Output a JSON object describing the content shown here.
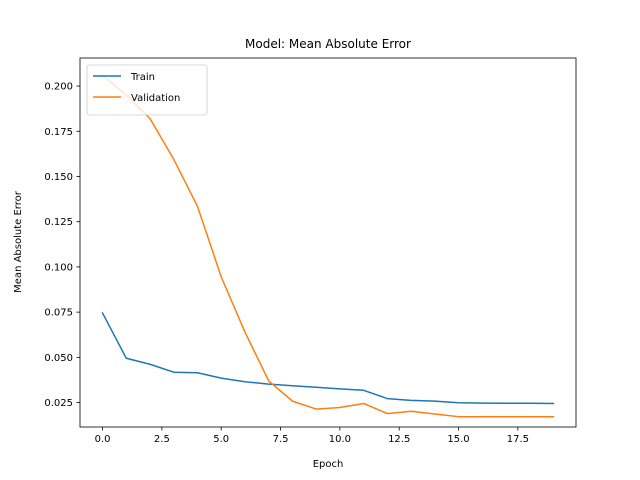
{
  "chart_data": {
    "type": "line",
    "title": "Model: Mean Absolute Error",
    "xlabel": "Epoch",
    "ylabel": "Mean Absolute Error",
    "xlim": [
      -0.95,
      19.95
    ],
    "ylim": [
      0.0115,
      0.2155
    ],
    "xticks": [
      0.0,
      2.5,
      5.0,
      7.5,
      10.0,
      12.5,
      15.0,
      17.5
    ],
    "xtick_labels": [
      "0.0",
      "2.5",
      "5.0",
      "7.5",
      "10.0",
      "12.5",
      "15.0",
      "17.5"
    ],
    "yticks": [
      0.025,
      0.05,
      0.075,
      0.1,
      0.125,
      0.15,
      0.175,
      0.2
    ],
    "ytick_labels": [
      "0.025",
      "0.050",
      "0.075",
      "0.100",
      "0.125",
      "0.150",
      "0.175",
      "0.200"
    ],
    "grid": false,
    "legend_position": "top-left",
    "x": [
      0,
      1,
      2,
      3,
      4,
      5,
      6,
      7,
      8,
      9,
      10,
      11,
      12,
      13,
      14,
      15,
      16,
      17,
      18,
      19
    ],
    "series": [
      {
        "name": "Train",
        "color": "#1f77b4",
        "values": [
          0.0745,
          0.0495,
          0.0462,
          0.0418,
          0.0415,
          0.0385,
          0.0365,
          0.0352,
          0.0343,
          0.0335,
          0.0326,
          0.0318,
          0.0272,
          0.0262,
          0.0258,
          0.0249,
          0.0247,
          0.0246,
          0.0246,
          0.0245
        ]
      },
      {
        "name": "Validation",
        "color": "#ff7f0e",
        "values": [
          0.206,
          0.195,
          0.182,
          0.1595,
          0.1335,
          0.0945,
          0.064,
          0.037,
          0.0258,
          0.0214,
          0.0223,
          0.0245,
          0.0189,
          0.0202,
          0.0187,
          0.0172,
          0.0172,
          0.0172,
          0.0172,
          0.0172
        ]
      }
    ]
  }
}
